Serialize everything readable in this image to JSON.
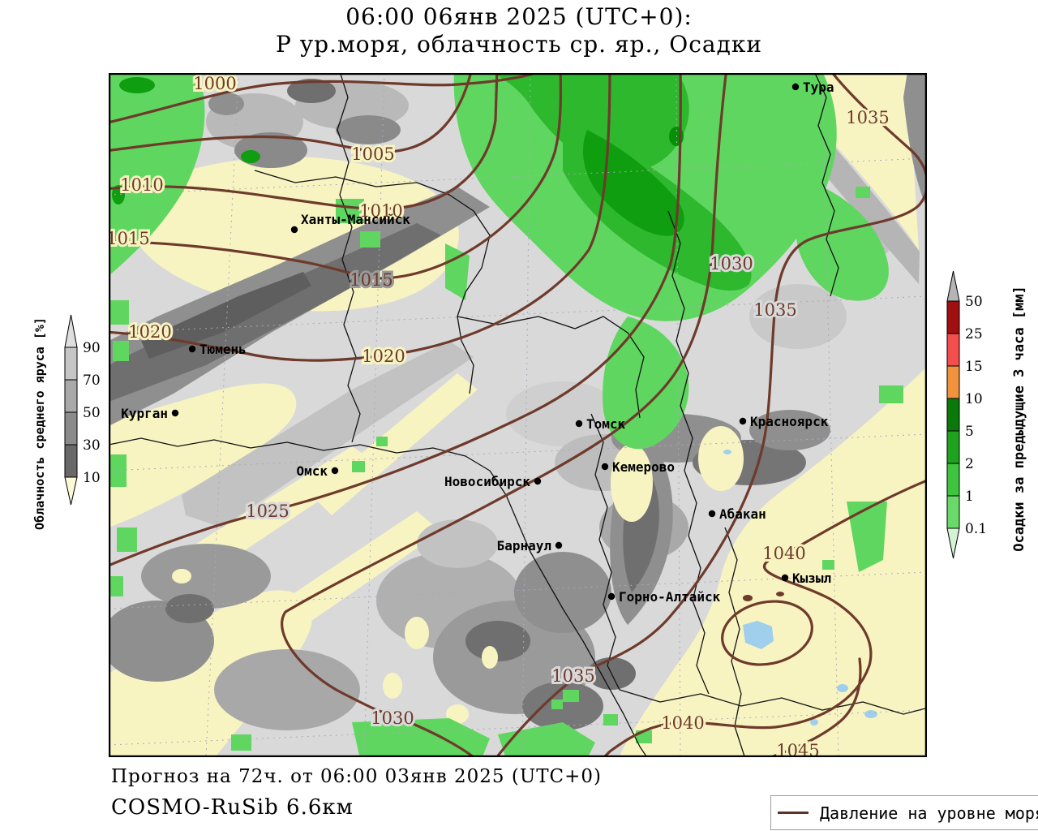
{
  "title": {
    "line1": "06:00 06янв 2025 (UTC+0):",
    "line2": "Р ур.моря, облачность ср. яр., Осадки"
  },
  "footer": {
    "line1": "Прогноз на 72ч. от 06:00 03янв 2025 (UTC+0)",
    "line2": "COSMO-RuSib 6.6км"
  },
  "legend": {
    "label": "Давление на уровне моря",
    "line_color": "#5e3226"
  },
  "colorbar_left": {
    "title": "Облачность среднего яруса [%]",
    "ticks": [
      "90",
      "70",
      "50",
      "30",
      "10"
    ],
    "segment_colors_top_to_bottom": [
      "#c6c6c6",
      "#a9a9a9",
      "#8b8b8b",
      "#696969"
    ],
    "arrow_top_color": "#dedede",
    "arrow_bottom_color": "#fcf9d8"
  },
  "colorbar_right": {
    "title": "Осадки за предыдущие 3 часа [мм]",
    "ticks": [
      "50",
      "25",
      "15",
      "10",
      "5",
      "2",
      "1",
      "0.1"
    ],
    "segment_colors_top_to_bottom": [
      "#a01010",
      "#f44d4d",
      "#f0923e",
      "#0b7a0b",
      "#1fa31f",
      "#3fc43f",
      "#69da69"
    ],
    "arrow_top_color": "#b5b5b5",
    "arrow_bottom_color": "#d4f3d4"
  },
  "map": {
    "cities": [
      "Тура",
      "Ханты-Мансийск",
      "Тюмень",
      "Курган",
      "Омск",
      "Томск",
      "Новосибирск",
      "Кемерово",
      "Барнаул",
      "Горно-Алтайск",
      "Абакан",
      "Красноярск",
      "Кызыл"
    ],
    "isobar_labels": [
      "1000",
      "1005",
      "1010",
      "1010",
      "1015",
      "1015",
      "1020",
      "1020",
      "1025",
      "1030",
      "1030",
      "1035",
      "1035",
      "1035",
      "1040",
      "1040",
      "1045"
    ],
    "palette": {
      "isobar": "#6e3a2b",
      "land": "#f8f4c2",
      "cloud_light": "#d9d9d9",
      "cloud_medium": "#9a9a9a",
      "cloud_dark": "#6f6f6f",
      "precip_light": "#5fd65f",
      "precip_medium": "#2eb82e",
      "precip_dark": "#0f9e0f",
      "lake": "#9fcfec",
      "region_border": "#111111"
    }
  }
}
